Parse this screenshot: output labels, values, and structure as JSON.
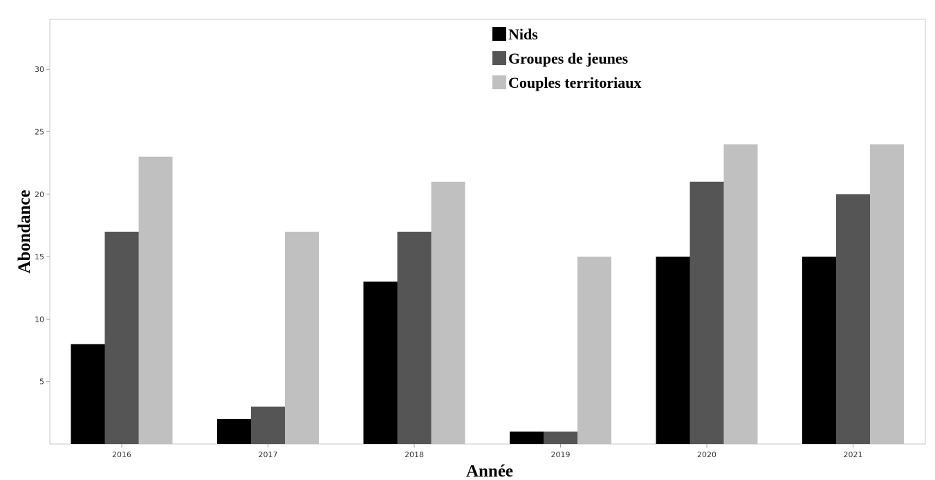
{
  "chart_data": {
    "type": "bar",
    "categories": [
      "2016",
      "2017",
      "2018",
      "2019",
      "2020",
      "2021"
    ],
    "series": [
      {
        "name": "Nids",
        "color": "#000000",
        "values": [
          8,
          2,
          13,
          1,
          15,
          15
        ]
      },
      {
        "name": "Groupes de jeunes",
        "color": "#555555",
        "values": [
          17,
          3,
          17,
          1,
          21,
          20
        ]
      },
      {
        "name": "Couples territoriaux",
        "color": "#c0c0c0",
        "values": [
          23,
          17,
          21,
          15,
          24,
          24
        ]
      }
    ],
    "xlabel": "Année",
    "ylabel": "Abondance",
    "ylim": [
      0,
      34
    ],
    "yticks": [
      "5",
      "10",
      "15",
      "20",
      "25",
      "30"
    ],
    "grid": false,
    "legend_position": "top-center"
  }
}
